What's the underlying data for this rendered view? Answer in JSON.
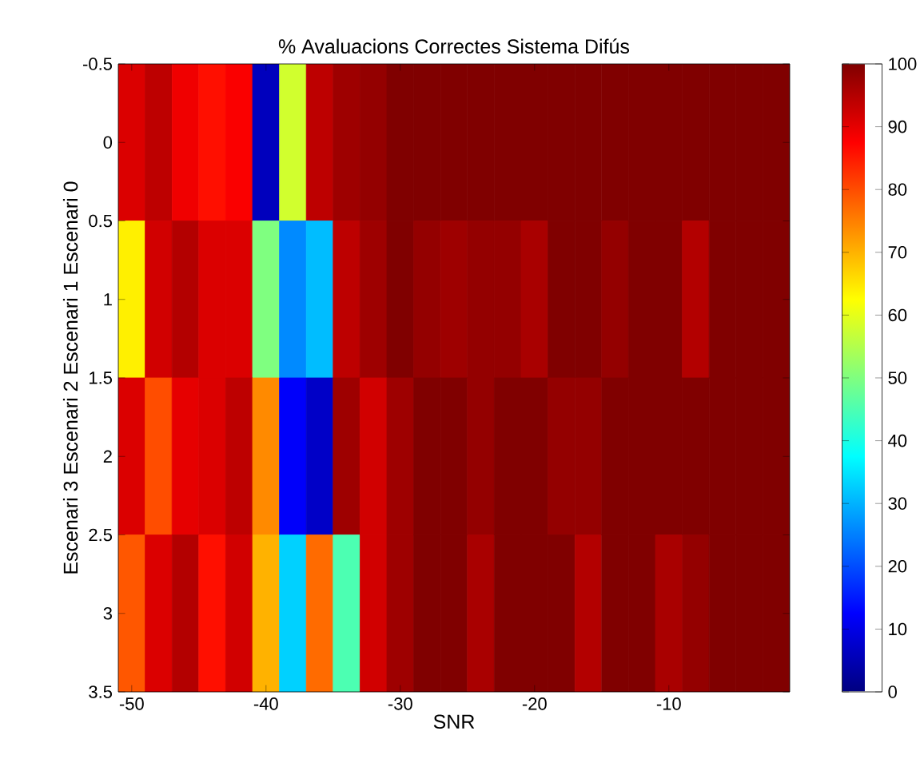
{
  "chart_data": {
    "type": "heatmap",
    "title": "% Avaluacions Correctes Sistema Difús",
    "xlabel": "SNR",
    "ylabel": "Escenari 3 Escenari 2 Escenari 1 Escenari 0",
    "x": [
      -50,
      -48,
      -46,
      -44,
      -42,
      -40,
      -38,
      -36,
      -34,
      -32,
      -30,
      -28,
      -26,
      -24,
      -22,
      -20,
      -18,
      -16,
      -14,
      -12,
      -10,
      -8,
      -6,
      -4,
      -2
    ],
    "y": [
      0,
      1,
      2,
      3
    ],
    "cells": [
      [
        91,
        94,
        89,
        86,
        88,
        6,
        58,
        94,
        97,
        98,
        100,
        100,
        100,
        100,
        100,
        100,
        100,
        100,
        100,
        100,
        100,
        100,
        100,
        100,
        100
      ],
      [
        64,
        92,
        95,
        91,
        91,
        50,
        26,
        31,
        94,
        97,
        100,
        98,
        97,
        98,
        98,
        96,
        100,
        100,
        98,
        100,
        100,
        95,
        100,
        100,
        100
      ],
      [
        91,
        80,
        90,
        91,
        94,
        74,
        12,
        7,
        97,
        92,
        97,
        100,
        100,
        98,
        100,
        100,
        98,
        98,
        100,
        100,
        100,
        100,
        100,
        100,
        100
      ],
      [
        79,
        91,
        95,
        86,
        92,
        70,
        33,
        77,
        45,
        92,
        97,
        100,
        100,
        96,
        100,
        100,
        100,
        95,
        100,
        100,
        96,
        98,
        100,
        100,
        100
      ]
    ],
    "xlim": [
      -51,
      -1
    ],
    "xticks": [
      -50,
      -40,
      -30,
      -20,
      -10
    ],
    "ylim": [
      3.5,
      -0.5
    ],
    "yticks": [
      -0.5,
      0,
      0.5,
      1,
      1.5,
      2,
      2.5,
      3,
      3.5
    ],
    "clim": [
      0,
      100
    ],
    "cticks": [
      0,
      10,
      20,
      30,
      40,
      50,
      60,
      70,
      80,
      90,
      100
    ]
  }
}
